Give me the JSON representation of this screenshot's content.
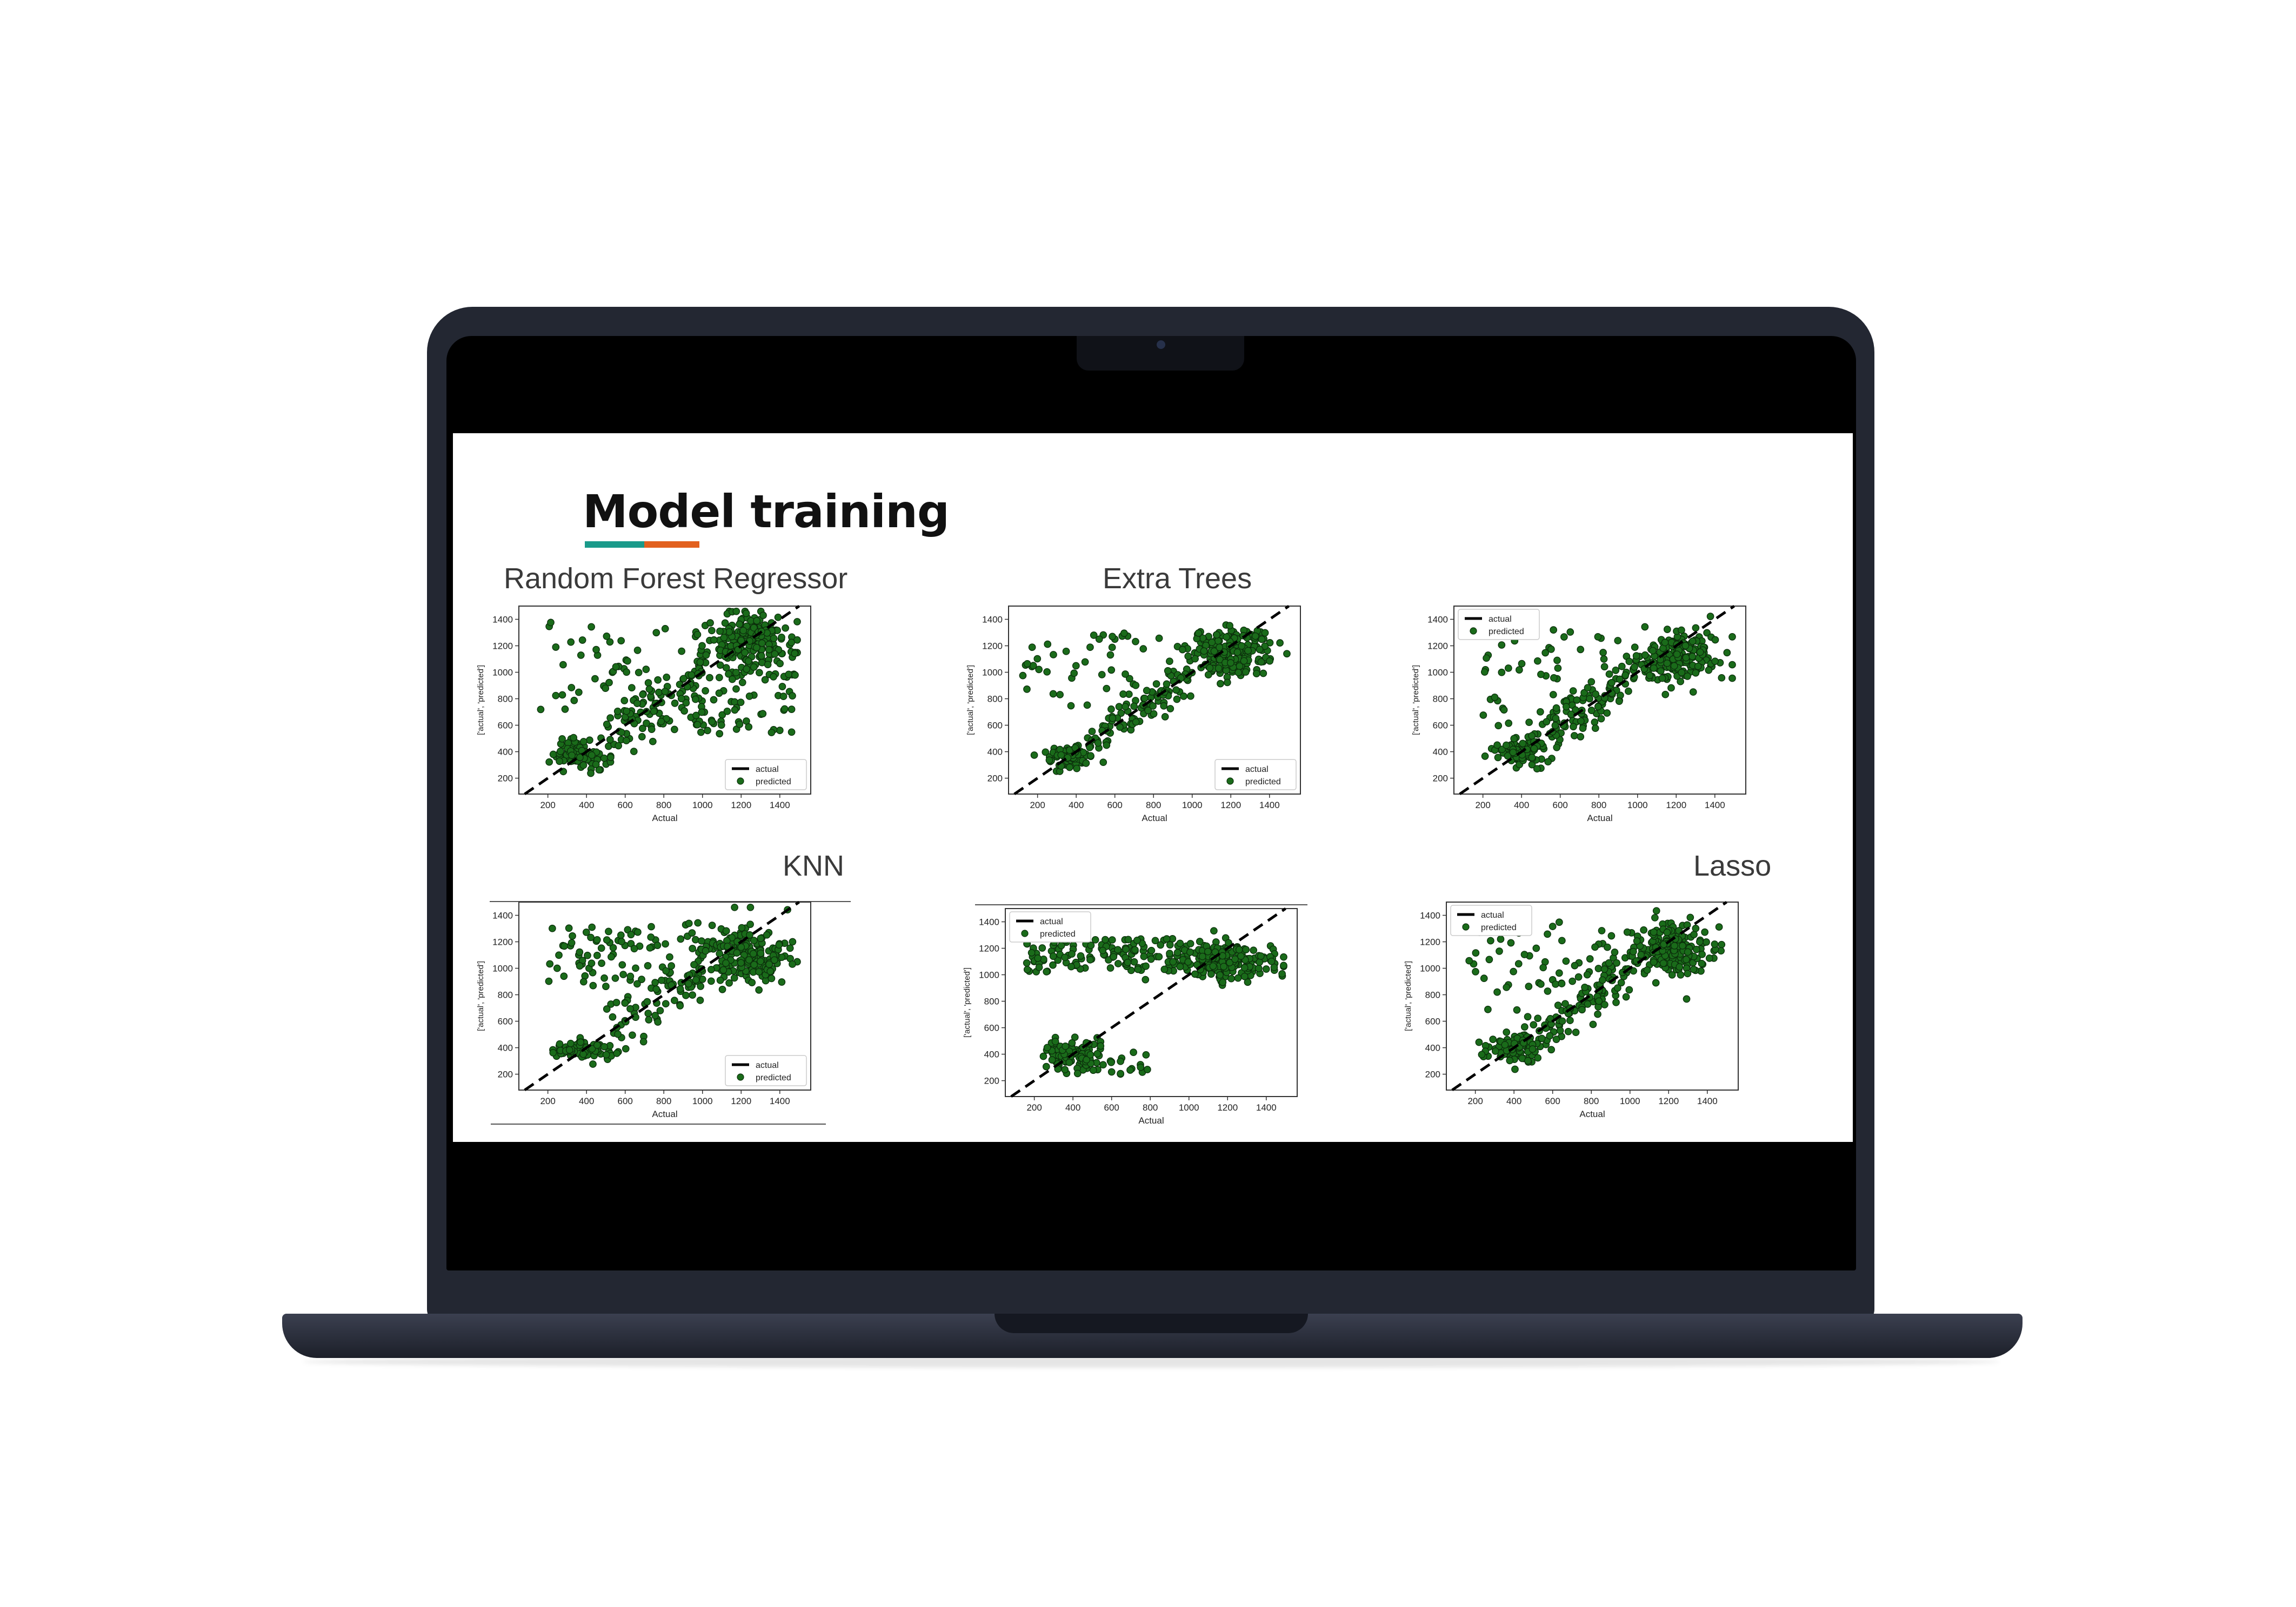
{
  "slide": {
    "title": "Model training",
    "accent_colors": [
      "#1a9a8a",
      "#e2601e"
    ],
    "panel_titles": [
      "Random Forest Regressor",
      "Extra Trees",
      "KNN",
      "Lasso"
    ]
  },
  "chart_data": [
    {
      "type": "scatter",
      "title": "Random Forest Regressor",
      "xlabel": "Actual",
      "ylabel": "['actual', 'predicted']",
      "xlim": [
        50,
        1560
      ],
      "ylim": [
        80,
        1500
      ],
      "xticks": [
        200,
        400,
        600,
        800,
        1000,
        1200,
        1400
      ],
      "yticks": [
        200,
        400,
        600,
        800,
        1000,
        1200,
        1400
      ],
      "legend": "bottom-right",
      "series": [
        {
          "name": "actual",
          "style": "dashed-line",
          "color": "#000000",
          "x": [
            80,
            1500
          ],
          "y": [
            80,
            1500
          ]
        },
        {
          "name": "predicted",
          "style": "points",
          "color": "#1a6b1a",
          "x": [],
          "y": []
        }
      ]
    },
    {
      "type": "scatter",
      "title": "Extra Trees",
      "xlabel": "Actual",
      "ylabel": "['actual', 'predicted']",
      "xlim": [
        50,
        1560
      ],
      "ylim": [
        80,
        1500
      ],
      "xticks": [
        200,
        400,
        600,
        800,
        1000,
        1200,
        1400
      ],
      "yticks": [
        200,
        400,
        600,
        800,
        1000,
        1200,
        1400
      ],
      "legend": "bottom-right",
      "series": [
        {
          "name": "actual",
          "style": "dashed-line",
          "color": "#000000",
          "x": [
            80,
            1500
          ],
          "y": [
            80,
            1500
          ]
        },
        {
          "name": "predicted",
          "style": "points",
          "color": "#1a6b1a",
          "x": [],
          "y": []
        }
      ]
    },
    {
      "type": "scatter",
      "title": "",
      "xlabel": "Actual",
      "ylabel": "['actual', 'predicted']",
      "xlim": [
        50,
        1560
      ],
      "ylim": [
        80,
        1500
      ],
      "xticks": [
        200,
        400,
        600,
        800,
        1000,
        1200,
        1400
      ],
      "yticks": [
        200,
        400,
        600,
        800,
        1000,
        1200,
        1400
      ],
      "legend": "top-left",
      "series": [
        {
          "name": "actual",
          "style": "dashed-line",
          "color": "#000000",
          "x": [
            80,
            1500
          ],
          "y": [
            80,
            1500
          ]
        },
        {
          "name": "predicted",
          "style": "points",
          "color": "#1a6b1a",
          "x": [],
          "y": []
        }
      ]
    },
    {
      "type": "scatter",
      "title": "KNN",
      "xlabel": "Actual",
      "ylabel": "['actual', 'predicted']",
      "xlim": [
        50,
        1560
      ],
      "ylim": [
        80,
        1500
      ],
      "xticks": [
        200,
        400,
        600,
        800,
        1000,
        1200,
        1400
      ],
      "yticks": [
        200,
        400,
        600,
        800,
        1000,
        1200,
        1400
      ],
      "legend": "bottom-right",
      "series": [
        {
          "name": "actual",
          "style": "dashed-line",
          "color": "#000000",
          "x": [
            80,
            1500
          ],
          "y": [
            80,
            1500
          ]
        },
        {
          "name": "predicted",
          "style": "points",
          "color": "#1a6b1a",
          "x": [],
          "y": []
        }
      ]
    },
    {
      "type": "scatter",
      "title": "",
      "xlabel": "Actual",
      "ylabel": "['actual', 'predicted']",
      "xlim": [
        50,
        1560
      ],
      "ylim": [
        80,
        1500
      ],
      "xticks": [
        200,
        400,
        600,
        800,
        1000,
        1200,
        1400
      ],
      "yticks": [
        200,
        400,
        600,
        800,
        1000,
        1200,
        1400
      ],
      "legend": "top-left",
      "series": [
        {
          "name": "actual",
          "style": "dashed-line",
          "color": "#000000",
          "x": [
            80,
            1500
          ],
          "y": [
            80,
            1500
          ]
        },
        {
          "name": "predicted",
          "style": "points",
          "color": "#1a6b1a",
          "x": [],
          "y": []
        }
      ]
    },
    {
      "type": "scatter",
      "title": "Lasso",
      "xlabel": "Actual",
      "ylabel": "['actual', 'predicted']",
      "xlim": [
        50,
        1560
      ],
      "ylim": [
        80,
        1500
      ],
      "xticks": [
        200,
        400,
        600,
        800,
        1000,
        1200,
        1400
      ],
      "yticks": [
        200,
        400,
        600,
        800,
        1000,
        1200,
        1400
      ],
      "legend": "top-left",
      "series": [
        {
          "name": "actual",
          "style": "dashed-line",
          "color": "#000000",
          "x": [
            80,
            1500
          ],
          "y": [
            80,
            1500
          ]
        },
        {
          "name": "predicted",
          "style": "points",
          "color": "#1a6b1a",
          "x": [],
          "y": []
        }
      ]
    }
  ]
}
